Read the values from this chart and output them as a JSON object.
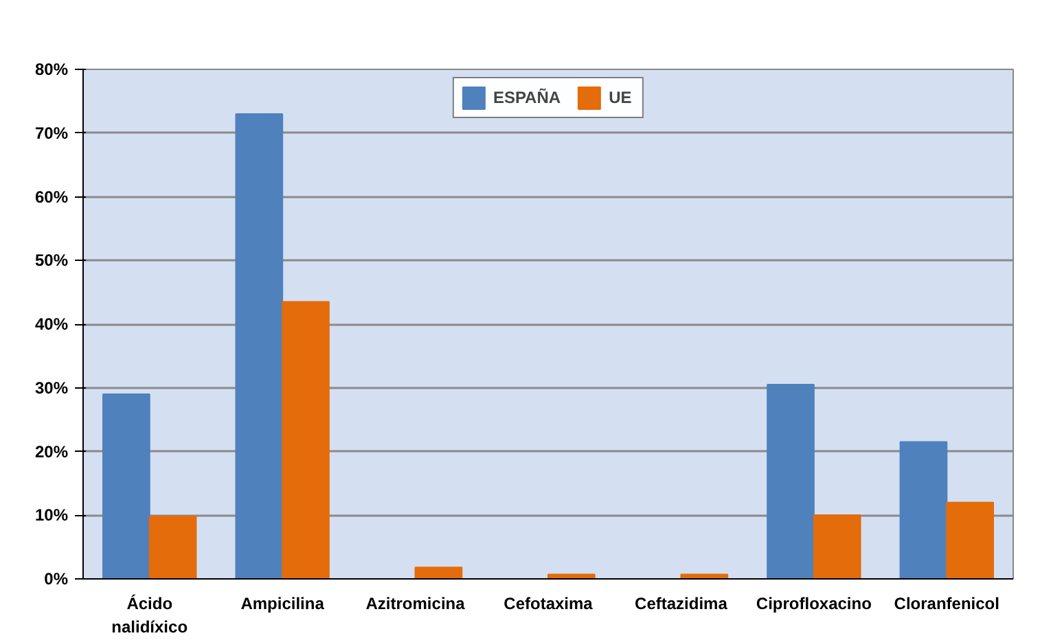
{
  "chart_data": {
    "type": "bar",
    "categories": [
      "Ácido\nnalidíxico",
      "Ampicilina",
      "Azitromicina",
      "Cefotaxima",
      "Ceftazidima",
      "Ciprofloxacino",
      "Cloranfenicol"
    ],
    "series": [
      {
        "name": "ESPAÑA",
        "color": "#4f81bd",
        "values": [
          29,
          73,
          0,
          0,
          0,
          30.5,
          21.5
        ]
      },
      {
        "name": "UE",
        "color": "#e46c0a",
        "values": [
          9.8,
          43.5,
          1.8,
          0.7,
          0.7,
          10,
          12
        ]
      }
    ],
    "ylim": [
      0,
      80
    ],
    "yticks": [
      {
        "value": 0,
        "label": "0%"
      },
      {
        "value": 10,
        "label": "10%"
      },
      {
        "value": 20,
        "label": "20%"
      },
      {
        "value": 30,
        "label": "30%"
      },
      {
        "value": 40,
        "label": "40%"
      },
      {
        "value": 50,
        "label": "50%"
      },
      {
        "value": 60,
        "label": "60%"
      },
      {
        "value": 70,
        "label": "70%"
      },
      {
        "value": 80,
        "label": "80%"
      }
    ],
    "grid": "y",
    "legend": "top"
  }
}
